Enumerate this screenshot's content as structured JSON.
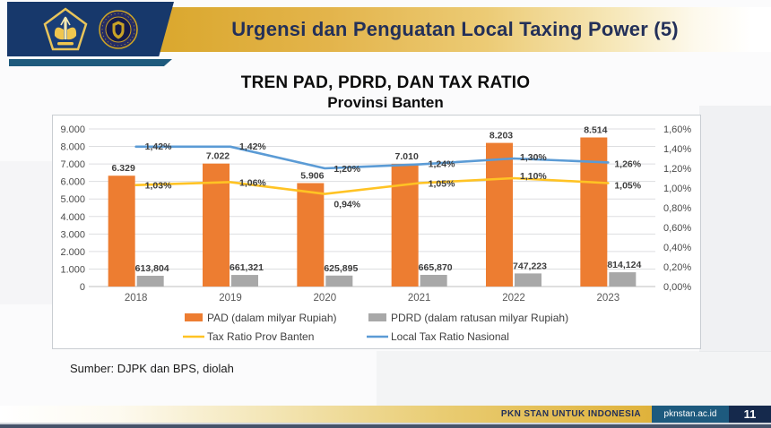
{
  "header": {
    "title": "Urgensi dan Penguatan Local Taxing Power (5)",
    "logo_names": [
      "kemenkeu-logo",
      "pknstan-seal-logo"
    ]
  },
  "chart_heading": {
    "line1": "TREN PAD, PDRD, DAN TAX RATIO",
    "line2": "Provinsi Banten"
  },
  "chart_data": {
    "type": "combo-bar-line",
    "title": "TREN PAD, PDRD, DAN TAX RATIO Provinsi Banten",
    "categories": [
      "2018",
      "2019",
      "2020",
      "2021",
      "2022",
      "2023"
    ],
    "left_axis": {
      "min": 0,
      "max": 9000,
      "ticks": [
        "9.000",
        "8.000",
        "7.000",
        "6.000",
        "5.000",
        "4.000",
        "3.000",
        "2.000",
        "1.000",
        "0"
      ]
    },
    "right_axis": {
      "min": 0,
      "max": 1.6,
      "ticks": [
        "1,60%",
        "1,40%",
        "1,20%",
        "1,00%",
        "0,80%",
        "0,60%",
        "0,40%",
        "0,20%",
        "0,00%"
      ]
    },
    "grid": "horizontal",
    "legend_position": "bottom",
    "series": [
      {
        "name": "PAD (dalam milyar Rupiah)",
        "type": "bar",
        "axis": "left",
        "color": "#ED7D31",
        "values": [
          6329,
          7022,
          5906,
          7010,
          8203,
          8514
        ],
        "data_labels": [
          "6.329",
          "7.022",
          "5.906",
          "7.010",
          "8.203",
          "8.514"
        ]
      },
      {
        "name": "PDRD (dalam ratusan milyar Rupiah)",
        "type": "bar",
        "axis": "left",
        "color": "#A8A8A8",
        "values": [
          613.804,
          661.321,
          625.895,
          665.87,
          747.223,
          814.124
        ],
        "data_labels": [
          "613,804",
          "661,321",
          "625,895",
          "665,870",
          "747,223",
          "814,124"
        ]
      },
      {
        "name": "Tax Ratio Prov Banten",
        "type": "line",
        "axis": "right",
        "color": "#FFC324",
        "values": [
          1.03,
          1.06,
          0.94,
          1.05,
          1.1,
          1.05
        ],
        "data_labels": [
          "1,03%",
          "1,06%",
          "0,94%",
          "1,05%",
          "1,10%",
          "1,05%"
        ]
      },
      {
        "name": "Local Tax Ratio Nasional",
        "type": "line",
        "axis": "right",
        "color": "#5B9BD5",
        "values": [
          1.42,
          1.42,
          1.2,
          1.24,
          1.3,
          1.26
        ],
        "data_labels": [
          "1,42%",
          "1,42%",
          "1,20%",
          "1,24%",
          "1,30%",
          "1,26%"
        ]
      }
    ]
  },
  "source_note": "Sumber: DJPK dan BPS, diolah",
  "footer": {
    "tagline": "PKN STAN UNTUK INDONESIA",
    "website": "pknstan.ac.id",
    "page_number": "11"
  },
  "colors": {
    "header_gold": "#E3B44B",
    "header_navy": "#17386B",
    "accent_teal": "#1E5A7D",
    "footer_navy": "#15294C",
    "bar_orange": "#ED7D31",
    "bar_gray": "#A8A8A8",
    "line_yellow": "#FFC324",
    "line_blue": "#5B9BD5"
  }
}
